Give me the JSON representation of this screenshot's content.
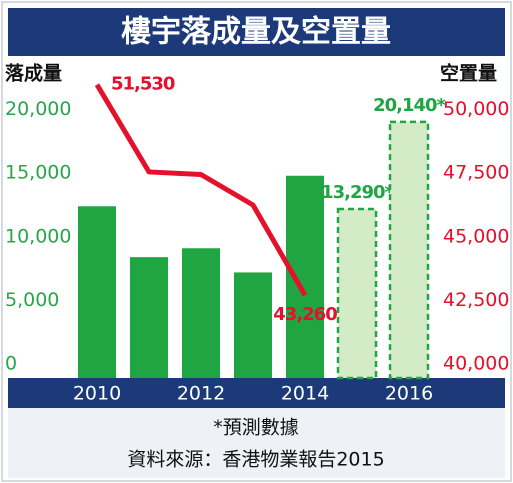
{
  "chart_data": {
    "type": "bar_line",
    "title": "樓宇落成量及空置量",
    "y_label": "落成量",
    "y2_label": "空置量",
    "categories": [
      "2010",
      null,
      "2012",
      null,
      "2014",
      null,
      "2016"
    ],
    "values": [
      13500,
      9500,
      10200,
      8300,
      15900,
      13290,
      20140
    ],
    "value_labels": [
      null,
      null,
      null,
      null,
      null,
      "13,290*",
      "20,140*"
    ],
    "forecast": [
      false,
      false,
      false,
      false,
      false,
      true,
      true
    ],
    "color": "#1fa642",
    "forecast_color": "#d3ebc6",
    "line": {
      "axis": "y2",
      "color": "#e5102b",
      "values": [
        51530,
        48100,
        48000,
        46800,
        43260,
        null,
        null
      ],
      "value_labels": [
        "51,530",
        null,
        null,
        null,
        "43,260",
        null,
        null
      ]
    },
    "ylim": [
      0,
      25000
    ],
    "yticks": [
      0,
      {
        "value": 5000,
        "label": "5,000"
      },
      {
        "value": 10000,
        "label": "10,000"
      },
      {
        "value": 15000,
        "label": "15,000"
      },
      {
        "value": 20000,
        "label": "20,000"
      }
    ],
    "y2lim": [
      40000,
      52500
    ],
    "y2ticks": [
      {
        "value": 40000,
        "label": "40,000"
      },
      {
        "value": 42500,
        "label": "42,500"
      },
      {
        "value": 45000,
        "label": "45,000"
      },
      {
        "value": 47500,
        "label": "47,500"
      },
      {
        "value": 50000,
        "label": "50,000"
      }
    ],
    "footnote": "*預測數據",
    "source": "資料來源：香港物業報告2015"
  }
}
